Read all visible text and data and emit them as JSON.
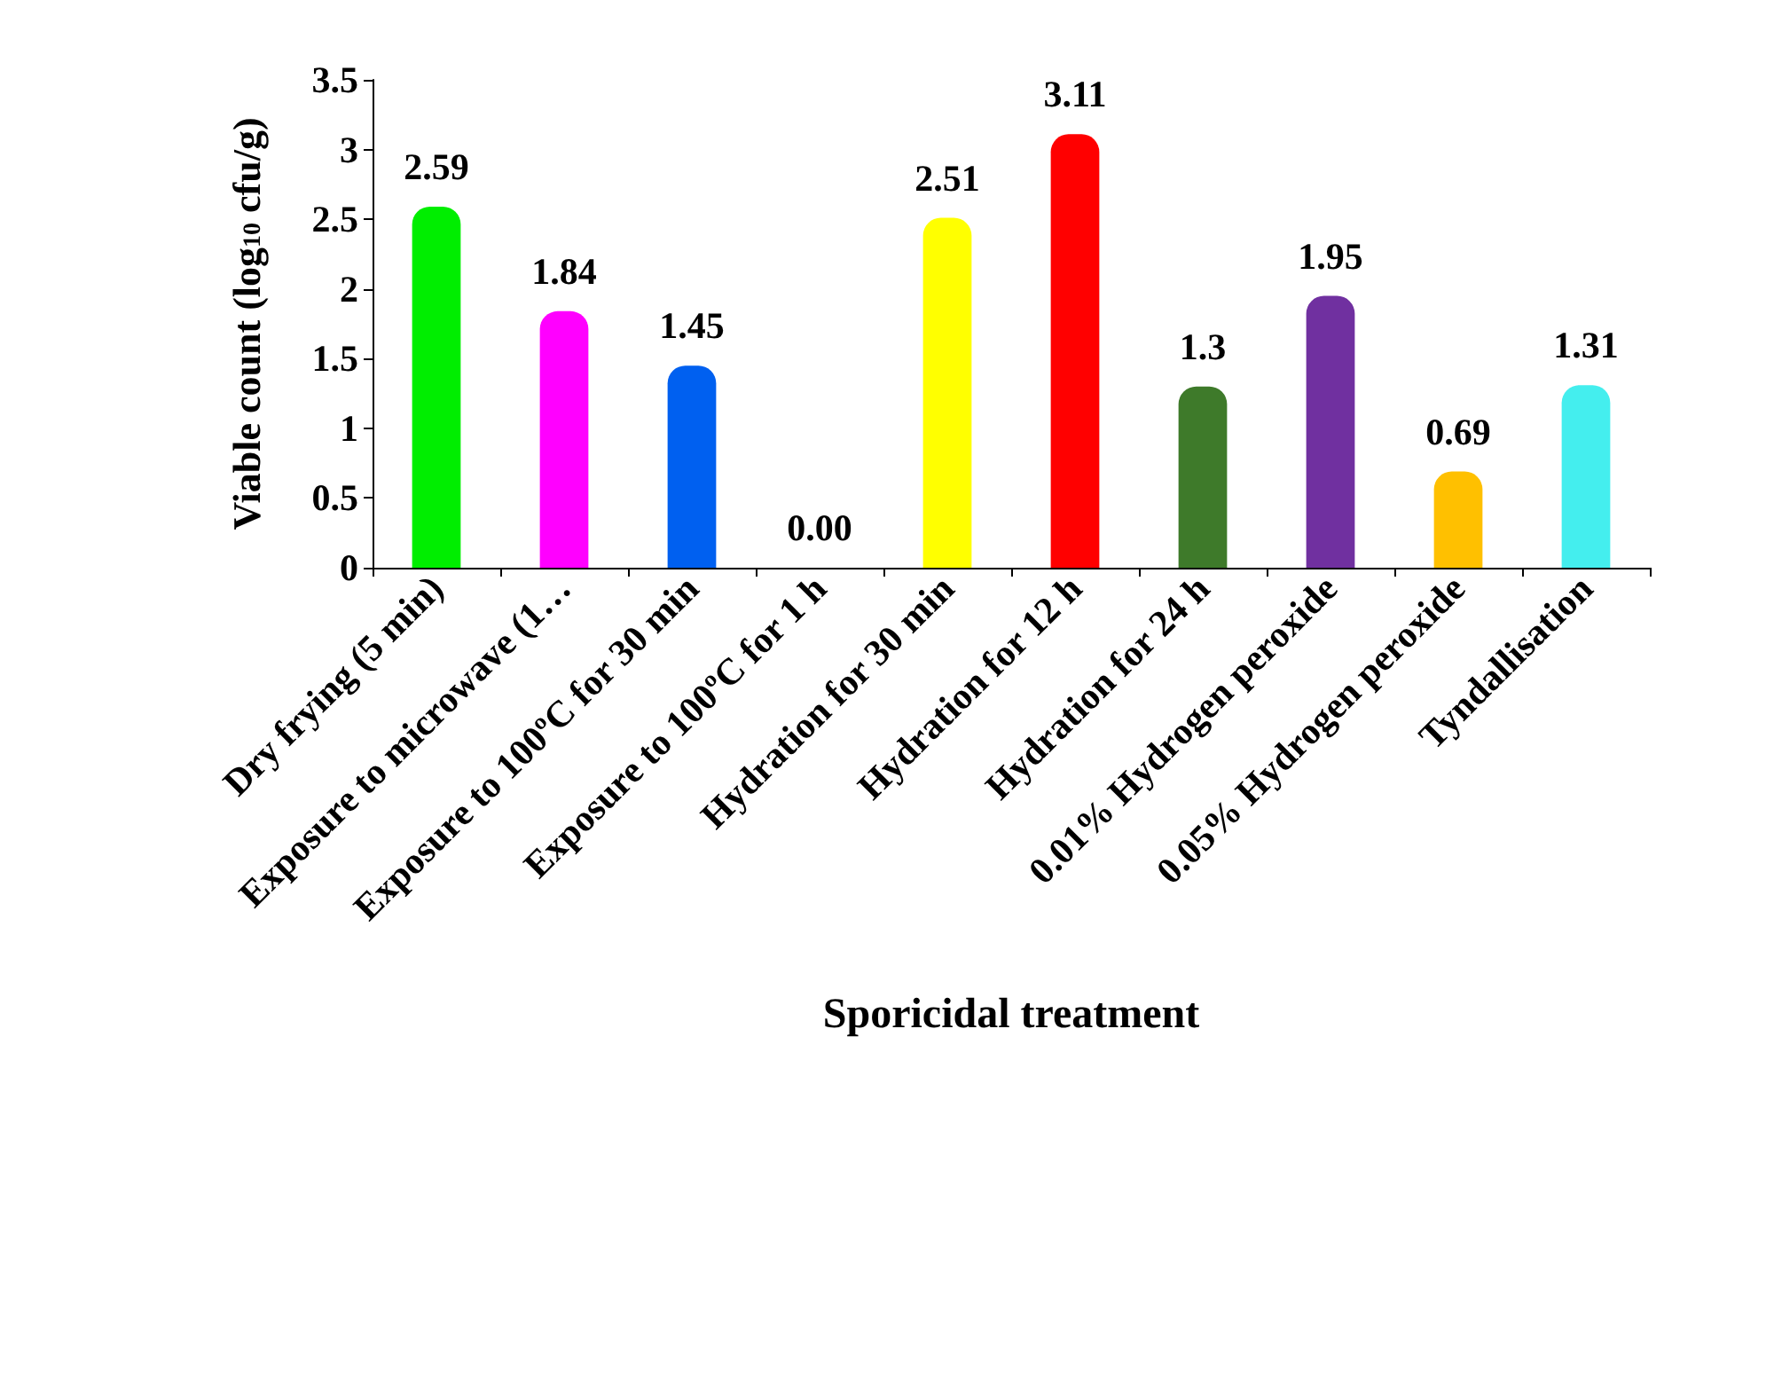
{
  "chart_data": {
    "type": "bar",
    "xlabel": "Sporicidal treatment",
    "ylabel": "Viable count (log$_{10}$ cfu/g)",
    "categories": [
      "Dry frying (5 min)",
      "Exposure to microwave (1…",
      "Exposure to 100ºC for 30 min",
      "Exposure to 100ºC for 1 h",
      "Hydration for 30 min",
      "Hydration for 12 h",
      "Hydration for 24 h",
      "0.01% Hydrogen peroxide",
      "0.05% Hydrogen peroxide",
      "Tyndallisation"
    ],
    "values": [
      2.59,
      1.84,
      1.45,
      0,
      2.51,
      3.11,
      1.3,
      1.95,
      0.69,
      1.31
    ],
    "value_labels": [
      "2.59",
      "1.84",
      "1.45",
      "0.00",
      "2.51",
      "3.11",
      "1.3",
      "1.95",
      "0.69",
      "1.31"
    ],
    "colors": [
      "#00ee00",
      "#ff00ff",
      "#0060f0",
      "#c05010",
      "#ffff00",
      "#ff0000",
      "#3e7a2a",
      "#7030a0",
      "#ffc000",
      "#44eeee"
    ],
    "ylim": [
      0,
      3.5
    ],
    "yticks": [
      0,
      0.5,
      1,
      1.5,
      2,
      2.5,
      3,
      3.5
    ],
    "grid": false
  }
}
